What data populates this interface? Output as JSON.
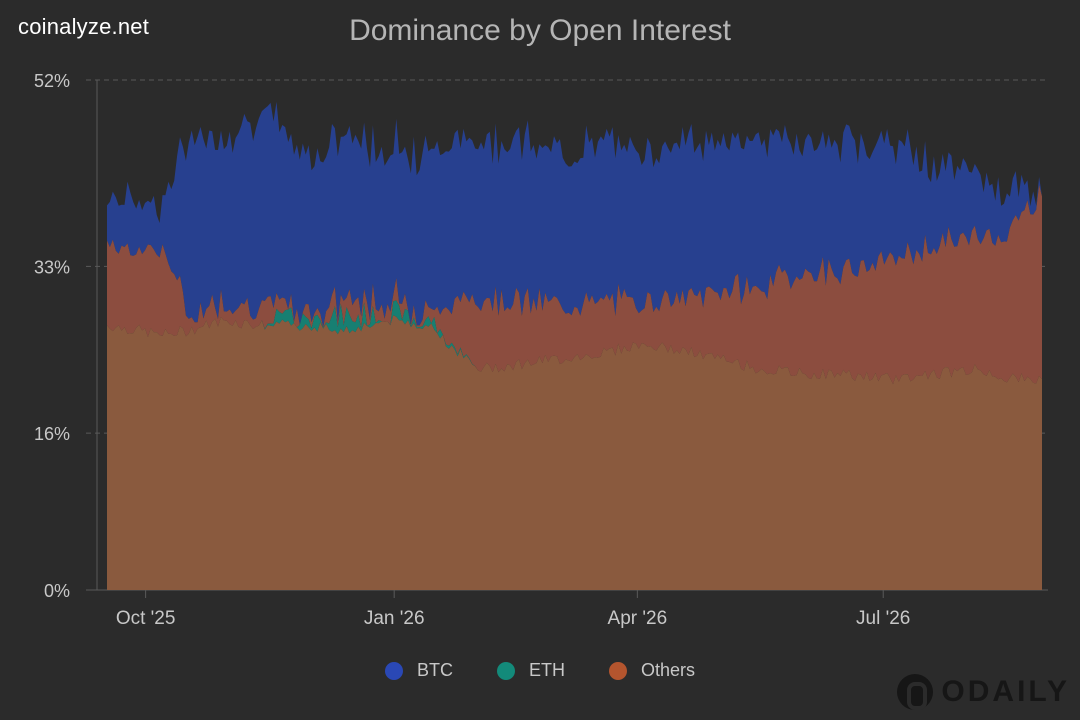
{
  "header": {
    "site": "coinalyze.net",
    "title": "Dominance by Open Interest"
  },
  "watermark": {
    "text": "ODAILY"
  },
  "colors": {
    "background": "#2b2b2b",
    "btc": "#27408f",
    "eth": "#177f72",
    "others_top": "#8c4d3f",
    "others_base": "#8a5a3e",
    "grid": "#5a5a5a",
    "axis_text": "#c8c8c8"
  },
  "chart_data": {
    "type": "area",
    "stacked": true,
    "title": "Dominance by Open Interest",
    "ylim": [
      0,
      52
    ],
    "y_ticks": [
      {
        "value": 0,
        "label": "0%"
      },
      {
        "value": 16,
        "label": "16%"
      },
      {
        "value": 33,
        "label": "33%"
      },
      {
        "value": 52,
        "label": "52%"
      }
    ],
    "x_ticks": [
      "Oct '25",
      "Jan '26",
      "Apr '26",
      "Jul '26"
    ],
    "legend_position": "bottom",
    "x": [
      "2025-09-20",
      "2025-10-01",
      "2025-10-10",
      "2025-10-20",
      "2025-11-01",
      "2025-11-15",
      "2025-12-01",
      "2025-12-15",
      "2026-01-01",
      "2026-01-15",
      "2026-02-01",
      "2026-02-15",
      "2026-03-01",
      "2026-03-15",
      "2026-04-01",
      "2026-04-15",
      "2026-05-01",
      "2026-05-15",
      "2026-06-01",
      "2026-06-15",
      "2026-07-01",
      "2026-07-15",
      "2026-08-01",
      "2026-08-15",
      "2026-08-25"
    ],
    "series": [
      {
        "name": "Others",
        "values": [
          27.0,
          26.5,
          26.0,
          26.5,
          27.5,
          27.0,
          27.0,
          26.5,
          27.5,
          27.0,
          22.5,
          23.0,
          23.5,
          24.0,
          25.0,
          24.5,
          23.5,
          22.5,
          22.0,
          22.0,
          21.5,
          22.0,
          22.5,
          21.5,
          21.5
        ]
      },
      {
        "name": "ETH",
        "values": [
          0,
          0,
          0,
          0,
          0,
          0,
          1.0,
          1.5,
          0.5,
          0.5,
          0,
          0,
          0,
          0,
          0,
          0,
          0,
          0,
          0,
          0,
          0,
          0,
          0,
          0,
          0
        ]
      },
      {
        "name": "Others-upper",
        "values": [
          8.5,
          8.0,
          9.0,
          1.5,
          2.0,
          2.0,
          0.5,
          1.5,
          1.5,
          1.0,
          7.5,
          6.5,
          5.5,
          5.5,
          4.5,
          5.0,
          7.0,
          8.5,
          10.5,
          10.5,
          12.0,
          13.0,
          13.5,
          15.5,
          19.5
        ]
      },
      {
        "name": "BTC",
        "values": [
          4.5,
          5.5,
          4.5,
          18.0,
          17.0,
          19.5,
          16.0,
          16.5,
          15.5,
          16.5,
          16.0,
          16.5,
          15.5,
          16.0,
          15.5,
          16.0,
          15.0,
          15.5,
          13.0,
          13.0,
          12.0,
          8.5,
          6.5,
          3.5,
          0.5
        ]
      }
    ]
  },
  "legend": [
    {
      "label": "BTC",
      "color": "#2a48b5"
    },
    {
      "label": "ETH",
      "color": "#138a7a"
    },
    {
      "label": "Others",
      "color": "#b4552e"
    }
  ]
}
